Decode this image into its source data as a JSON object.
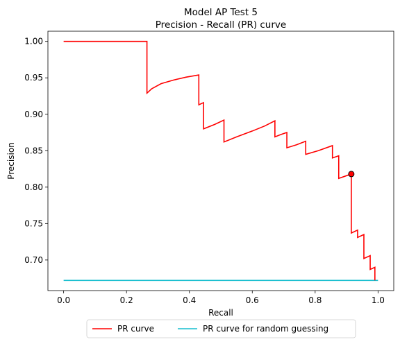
{
  "chart_data": {
    "type": "line",
    "title": "Model AP Test 5",
    "subtitle": "Precision - Recall (PR) curve",
    "xlabel": "Recall",
    "ylabel": "Precision",
    "xlim": [
      -0.05,
      1.05
    ],
    "ylim": [
      0.658,
      1.014
    ],
    "xticks": [
      0.0,
      0.2,
      0.4,
      0.6,
      0.8,
      1.0
    ],
    "xtick_labels": [
      "0.0",
      "0.2",
      "0.4",
      "0.6",
      "0.8",
      "1.0"
    ],
    "yticks": [
      0.7,
      0.75,
      0.8,
      0.85,
      0.9,
      0.95,
      1.0
    ],
    "ytick_labels": [
      "0.70",
      "0.75",
      "0.80",
      "0.85",
      "0.90",
      "0.95",
      "1.00"
    ],
    "grid": false,
    "legend_position": "bottom-center-outside",
    "legend_columns": 2,
    "series": [
      {
        "name": "PR curve",
        "color": "#ff0000",
        "points": [
          [
            0.0,
            1.0
          ],
          [
            0.265,
            1.0
          ],
          [
            0.265,
            0.929
          ],
          [
            0.28,
            0.935
          ],
          [
            0.31,
            0.942
          ],
          [
            0.35,
            0.947
          ],
          [
            0.39,
            0.951
          ],
          [
            0.43,
            0.954
          ],
          [
            0.43,
            0.913
          ],
          [
            0.445,
            0.916
          ],
          [
            0.445,
            0.88
          ],
          [
            0.48,
            0.886
          ],
          [
            0.51,
            0.892
          ],
          [
            0.51,
            0.862
          ],
          [
            0.55,
            0.869
          ],
          [
            0.6,
            0.877
          ],
          [
            0.64,
            0.884
          ],
          [
            0.672,
            0.891
          ],
          [
            0.672,
            0.869
          ],
          [
            0.69,
            0.872
          ],
          [
            0.71,
            0.875
          ],
          [
            0.71,
            0.854
          ],
          [
            0.74,
            0.858
          ],
          [
            0.77,
            0.863
          ],
          [
            0.77,
            0.845
          ],
          [
            0.81,
            0.85
          ],
          [
            0.855,
            0.857
          ],
          [
            0.855,
            0.84
          ],
          [
            0.875,
            0.843
          ],
          [
            0.875,
            0.812
          ],
          [
            0.895,
            0.815
          ],
          [
            0.915,
            0.818
          ],
          [
            0.915,
            0.737
          ],
          [
            0.935,
            0.741
          ],
          [
            0.935,
            0.731
          ],
          [
            0.955,
            0.735
          ],
          [
            0.955,
            0.702
          ],
          [
            0.975,
            0.706
          ],
          [
            0.975,
            0.687
          ],
          [
            0.99,
            0.69
          ],
          [
            0.99,
            0.672
          ]
        ]
      },
      {
        "name": "PR curve for random guessing",
        "color": "#17becf",
        "points": [
          [
            0.0,
            0.672
          ],
          [
            1.0,
            0.672
          ]
        ]
      }
    ],
    "marker": {
      "x": 0.915,
      "y": 0.818,
      "color": "#ff0000",
      "edge_color": "#000000"
    }
  }
}
